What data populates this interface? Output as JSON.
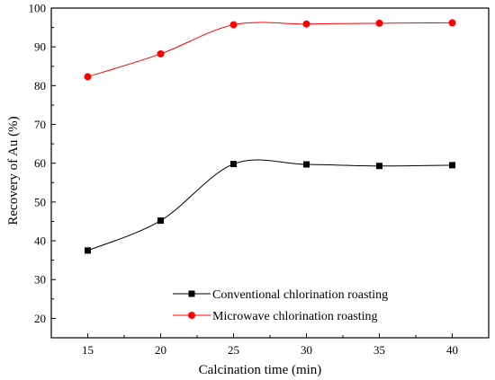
{
  "chart_data": {
    "type": "line",
    "title": "",
    "xlabel": "Calcination time (min)",
    "ylabel": "Recovery of Au (%)",
    "x": [
      15,
      20,
      25,
      30,
      35,
      40
    ],
    "xlim": [
      12.5,
      42.5
    ],
    "ylim": [
      15,
      100
    ],
    "xticks": [
      15,
      20,
      25,
      30,
      35,
      40
    ],
    "yticks": [
      20,
      30,
      40,
      50,
      60,
      70,
      80,
      90,
      100
    ],
    "grid": false,
    "legend_position": "bottom-center",
    "series": [
      {
        "name": "Conventional chlorination roasting",
        "values": [
          37.5,
          45.2,
          59.8,
          59.7,
          59.3,
          59.5
        ],
        "color": "#000000",
        "marker": "square"
      },
      {
        "name": "Microwave chlorination roasting",
        "values": [
          82.3,
          88.2,
          95.7,
          95.9,
          96.1,
          96.2
        ],
        "color": "#ff0000",
        "marker": "circle"
      }
    ]
  }
}
